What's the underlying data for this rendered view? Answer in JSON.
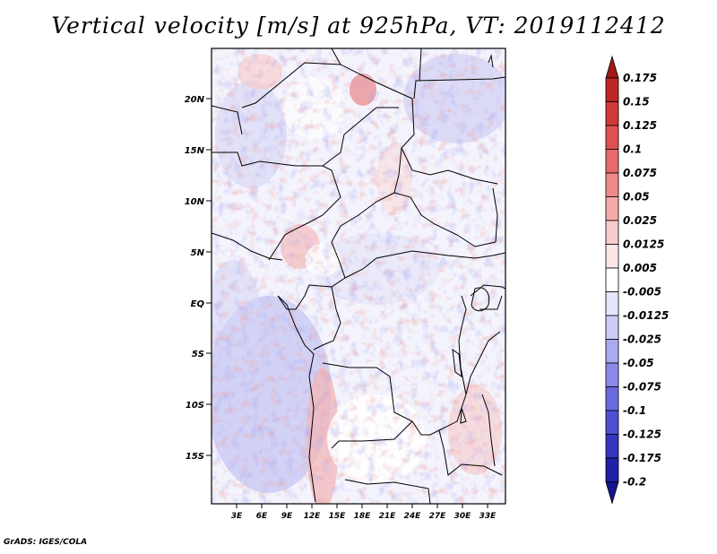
{
  "title": "Vertical velocity [m/s] at 925hPa, VT: 2019112412",
  "credit": "GrADS: IGES/COLA",
  "map": {
    "lat_labels": [
      "20N",
      "15N",
      "10N",
      "5N",
      "EQ",
      "5S",
      "10S",
      "15S"
    ],
    "lon_labels": [
      "3E",
      "6E",
      "9E",
      "12E",
      "15E",
      "18E",
      "21E",
      "24E",
      "27E",
      "30E",
      "33E"
    ]
  },
  "colorbar": {
    "labels": [
      "0.175",
      "0.15",
      "0.125",
      "0.1",
      "0.075",
      "0.05",
      "0.025",
      "0.0125",
      "0.005",
      "-0.005",
      "-0.0125",
      "-0.025",
      "-0.05",
      "-0.075",
      "-0.1",
      "-0.125",
      "-0.175",
      "-0.2"
    ],
    "colors": [
      "#a01818",
      "#bf2626",
      "#d33838",
      "#e05050",
      "#e86a6a",
      "#ef8a8a",
      "#f5aaaa",
      "#f9cccc",
      "#fce6e6",
      "#ffffff",
      "#e6e6fc",
      "#ccccf7",
      "#aaaaf0",
      "#8a8ae8",
      "#6a6ae0",
      "#4f4fd4",
      "#3535c0",
      "#2020a8",
      "#14148c"
    ]
  }
}
